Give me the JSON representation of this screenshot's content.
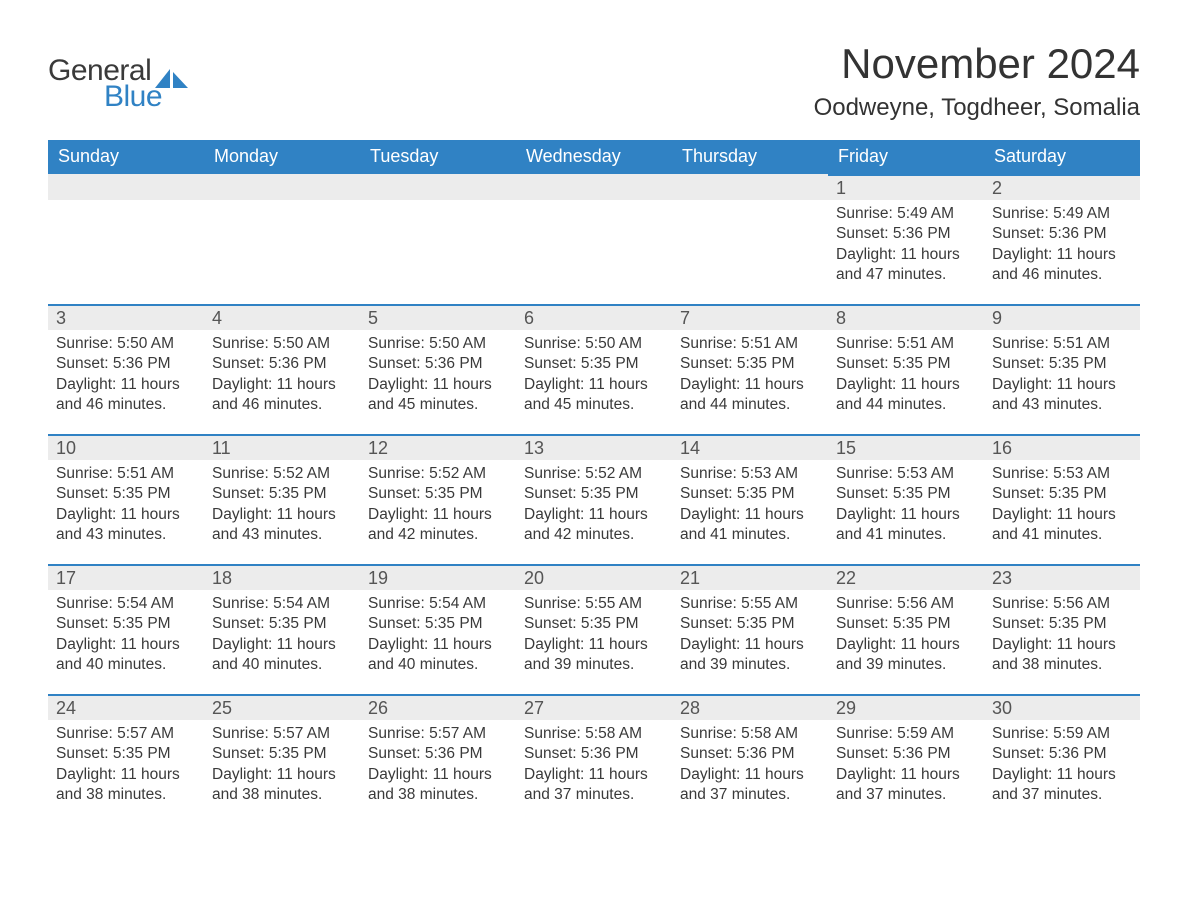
{
  "logo": {
    "word1": "General",
    "word2": "Blue",
    "accent_color": "#3082c4"
  },
  "title": "November 2024",
  "location": "Oodweyne, Togdheer, Somalia",
  "colors": {
    "header_bg": "#3082c4",
    "header_text": "#ffffff",
    "band_bg": "#ececec",
    "band_border": "#3082c4",
    "text": "#3a3a3a",
    "page_bg": "#ffffff"
  },
  "days_of_week": [
    "Sunday",
    "Monday",
    "Tuesday",
    "Wednesday",
    "Thursday",
    "Friday",
    "Saturday"
  ],
  "weeks": [
    [
      null,
      null,
      null,
      null,
      null,
      {
        "n": "1",
        "sunrise": "Sunrise: 5:49 AM",
        "sunset": "Sunset: 5:36 PM",
        "day1": "Daylight: 11 hours",
        "day2": "and 47 minutes."
      },
      {
        "n": "2",
        "sunrise": "Sunrise: 5:49 AM",
        "sunset": "Sunset: 5:36 PM",
        "day1": "Daylight: 11 hours",
        "day2": "and 46 minutes."
      }
    ],
    [
      {
        "n": "3",
        "sunrise": "Sunrise: 5:50 AM",
        "sunset": "Sunset: 5:36 PM",
        "day1": "Daylight: 11 hours",
        "day2": "and 46 minutes."
      },
      {
        "n": "4",
        "sunrise": "Sunrise: 5:50 AM",
        "sunset": "Sunset: 5:36 PM",
        "day1": "Daylight: 11 hours",
        "day2": "and 46 minutes."
      },
      {
        "n": "5",
        "sunrise": "Sunrise: 5:50 AM",
        "sunset": "Sunset: 5:36 PM",
        "day1": "Daylight: 11 hours",
        "day2": "and 45 minutes."
      },
      {
        "n": "6",
        "sunrise": "Sunrise: 5:50 AM",
        "sunset": "Sunset: 5:35 PM",
        "day1": "Daylight: 11 hours",
        "day2": "and 45 minutes."
      },
      {
        "n": "7",
        "sunrise": "Sunrise: 5:51 AM",
        "sunset": "Sunset: 5:35 PM",
        "day1": "Daylight: 11 hours",
        "day2": "and 44 minutes."
      },
      {
        "n": "8",
        "sunrise": "Sunrise: 5:51 AM",
        "sunset": "Sunset: 5:35 PM",
        "day1": "Daylight: 11 hours",
        "day2": "and 44 minutes."
      },
      {
        "n": "9",
        "sunrise": "Sunrise: 5:51 AM",
        "sunset": "Sunset: 5:35 PM",
        "day1": "Daylight: 11 hours",
        "day2": "and 43 minutes."
      }
    ],
    [
      {
        "n": "10",
        "sunrise": "Sunrise: 5:51 AM",
        "sunset": "Sunset: 5:35 PM",
        "day1": "Daylight: 11 hours",
        "day2": "and 43 minutes."
      },
      {
        "n": "11",
        "sunrise": "Sunrise: 5:52 AM",
        "sunset": "Sunset: 5:35 PM",
        "day1": "Daylight: 11 hours",
        "day2": "and 43 minutes."
      },
      {
        "n": "12",
        "sunrise": "Sunrise: 5:52 AM",
        "sunset": "Sunset: 5:35 PM",
        "day1": "Daylight: 11 hours",
        "day2": "and 42 minutes."
      },
      {
        "n": "13",
        "sunrise": "Sunrise: 5:52 AM",
        "sunset": "Sunset: 5:35 PM",
        "day1": "Daylight: 11 hours",
        "day2": "and 42 minutes."
      },
      {
        "n": "14",
        "sunrise": "Sunrise: 5:53 AM",
        "sunset": "Sunset: 5:35 PM",
        "day1": "Daylight: 11 hours",
        "day2": "and 41 minutes."
      },
      {
        "n": "15",
        "sunrise": "Sunrise: 5:53 AM",
        "sunset": "Sunset: 5:35 PM",
        "day1": "Daylight: 11 hours",
        "day2": "and 41 minutes."
      },
      {
        "n": "16",
        "sunrise": "Sunrise: 5:53 AM",
        "sunset": "Sunset: 5:35 PM",
        "day1": "Daylight: 11 hours",
        "day2": "and 41 minutes."
      }
    ],
    [
      {
        "n": "17",
        "sunrise": "Sunrise: 5:54 AM",
        "sunset": "Sunset: 5:35 PM",
        "day1": "Daylight: 11 hours",
        "day2": "and 40 minutes."
      },
      {
        "n": "18",
        "sunrise": "Sunrise: 5:54 AM",
        "sunset": "Sunset: 5:35 PM",
        "day1": "Daylight: 11 hours",
        "day2": "and 40 minutes."
      },
      {
        "n": "19",
        "sunrise": "Sunrise: 5:54 AM",
        "sunset": "Sunset: 5:35 PM",
        "day1": "Daylight: 11 hours",
        "day2": "and 40 minutes."
      },
      {
        "n": "20",
        "sunrise": "Sunrise: 5:55 AM",
        "sunset": "Sunset: 5:35 PM",
        "day1": "Daylight: 11 hours",
        "day2": "and 39 minutes."
      },
      {
        "n": "21",
        "sunrise": "Sunrise: 5:55 AM",
        "sunset": "Sunset: 5:35 PM",
        "day1": "Daylight: 11 hours",
        "day2": "and 39 minutes."
      },
      {
        "n": "22",
        "sunrise": "Sunrise: 5:56 AM",
        "sunset": "Sunset: 5:35 PM",
        "day1": "Daylight: 11 hours",
        "day2": "and 39 minutes."
      },
      {
        "n": "23",
        "sunrise": "Sunrise: 5:56 AM",
        "sunset": "Sunset: 5:35 PM",
        "day1": "Daylight: 11 hours",
        "day2": "and 38 minutes."
      }
    ],
    [
      {
        "n": "24",
        "sunrise": "Sunrise: 5:57 AM",
        "sunset": "Sunset: 5:35 PM",
        "day1": "Daylight: 11 hours",
        "day2": "and 38 minutes."
      },
      {
        "n": "25",
        "sunrise": "Sunrise: 5:57 AM",
        "sunset": "Sunset: 5:35 PM",
        "day1": "Daylight: 11 hours",
        "day2": "and 38 minutes."
      },
      {
        "n": "26",
        "sunrise": "Sunrise: 5:57 AM",
        "sunset": "Sunset: 5:36 PM",
        "day1": "Daylight: 11 hours",
        "day2": "and 38 minutes."
      },
      {
        "n": "27",
        "sunrise": "Sunrise: 5:58 AM",
        "sunset": "Sunset: 5:36 PM",
        "day1": "Daylight: 11 hours",
        "day2": "and 37 minutes."
      },
      {
        "n": "28",
        "sunrise": "Sunrise: 5:58 AM",
        "sunset": "Sunset: 5:36 PM",
        "day1": "Daylight: 11 hours",
        "day2": "and 37 minutes."
      },
      {
        "n": "29",
        "sunrise": "Sunrise: 5:59 AM",
        "sunset": "Sunset: 5:36 PM",
        "day1": "Daylight: 11 hours",
        "day2": "and 37 minutes."
      },
      {
        "n": "30",
        "sunrise": "Sunrise: 5:59 AM",
        "sunset": "Sunset: 5:36 PM",
        "day1": "Daylight: 11 hours",
        "day2": "and 37 minutes."
      }
    ]
  ]
}
